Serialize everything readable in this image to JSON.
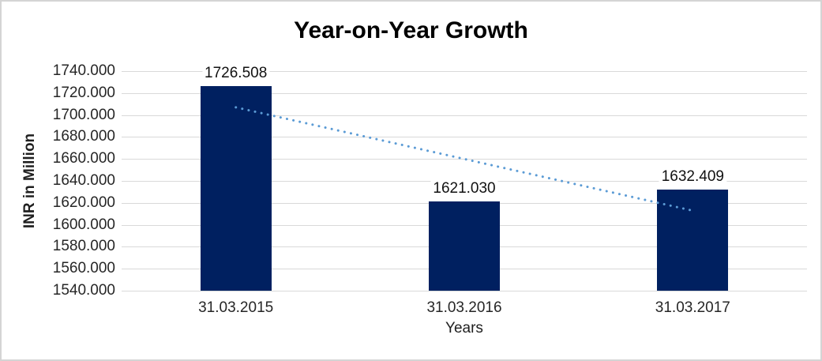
{
  "chart_data": {
    "type": "bar",
    "title": "Year-on-Year Growth",
    "xlabel": "Years",
    "ylabel": "INR in Million",
    "categories": [
      "31.03.2015",
      "31.03.2016",
      "31.03.2017"
    ],
    "values": [
      1726.508,
      1621.03,
      1632.409
    ],
    "data_labels": [
      "1726.508",
      "1621.030",
      "1632.409"
    ],
    "ylim": [
      1540,
      1740
    ],
    "ytick_step": 20,
    "ytick_labels": [
      "1740.000",
      "1720.000",
      "1700.000",
      "1680.000",
      "1660.000",
      "1640.000",
      "1620.000",
      "1600.000",
      "1580.000",
      "1560.000",
      "1540.000"
    ],
    "grid": true,
    "legend": "none",
    "colors": {
      "bar": "#002060",
      "trendline": "#5B9BD5",
      "gridline": "#D9D9D9",
      "text": "#262626"
    },
    "trendline": {
      "type": "linear",
      "style": "dotted",
      "start_value": 1707.0,
      "end_value": 1612.9
    }
  }
}
